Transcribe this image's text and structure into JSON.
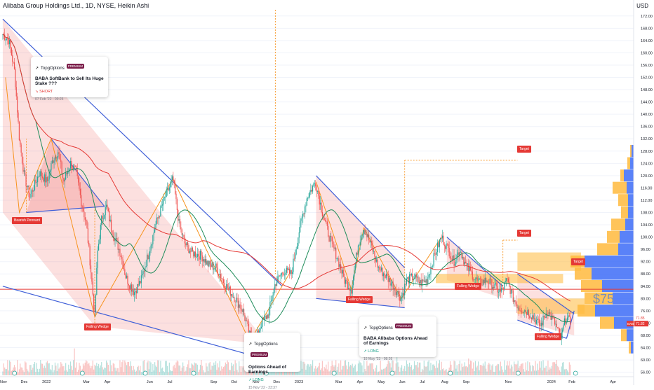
{
  "header": {
    "title": "Alibaba Group Holdings Ltd., 1D, NYSE, Heikin Ashi",
    "currency": "USD"
  },
  "chart_data": {
    "type": "candlestick",
    "symbol": "BABA",
    "price_label": "71.82",
    "last_price_label": "71.85",
    "big_price_text": "$75",
    "y_ticks": [
      "172.00",
      "168.00",
      "164.00",
      "160.00",
      "156.00",
      "152.00",
      "148.00",
      "144.00",
      "140.00",
      "136.00",
      "132.00",
      "128.00",
      "124.00",
      "120.00",
      "116.00",
      "112.00",
      "108.00",
      "104.00",
      "100.00",
      "96.00",
      "92.00",
      "88.00",
      "84.00",
      "80.00",
      "76.00",
      "72.00",
      "68.00",
      "64.00",
      "60.00",
      "56.00"
    ],
    "ylim": [
      55,
      174
    ],
    "x_ticks": [
      "Nov",
      "Dec",
      "2022",
      "Mar",
      "Apr",
      "Jun",
      "Jul",
      "Sep",
      "Oct",
      "Nov",
      "Dec",
      "2023",
      "Mar",
      "Apr",
      "May",
      "Jun",
      "Jul",
      "Aug",
      "Sep",
      "Nov",
      "2024",
      "Feb",
      "Apr"
    ],
    "horizontal_level": 83.0,
    "path_points": [
      {
        "d": "2021-11-01",
        "p": 166
      },
      {
        "d": "2021-11-10",
        "p": 164
      },
      {
        "d": "2021-11-18",
        "p": 154
      },
      {
        "d": "2021-11-25",
        "p": 132
      },
      {
        "d": "2021-12-02",
        "p": 120
      },
      {
        "d": "2021-12-10",
        "p": 113
      },
      {
        "d": "2021-12-17",
        "p": 117
      },
      {
        "d": "2021-12-24",
        "p": 121
      },
      {
        "d": "2022-01-04",
        "p": 118
      },
      {
        "d": "2022-01-12",
        "p": 125
      },
      {
        "d": "2022-01-20",
        "p": 128
      },
      {
        "d": "2022-01-28",
        "p": 118
      },
      {
        "d": "2022-02-07",
        "p": 124
      },
      {
        "d": "2022-02-15",
        "p": 121
      },
      {
        "d": "2022-02-23",
        "p": 111
      },
      {
        "d": "2022-03-02",
        "p": 104
      },
      {
        "d": "2022-03-08",
        "p": 90
      },
      {
        "d": "2022-03-14",
        "p": 74
      },
      {
        "d": "2022-03-18",
        "p": 95
      },
      {
        "d": "2022-03-24",
        "p": 106
      },
      {
        "d": "2022-03-31",
        "p": 110
      },
      {
        "d": "2022-04-08",
        "p": 102
      },
      {
        "d": "2022-04-20",
        "p": 95
      },
      {
        "d": "2022-04-28",
        "p": 87
      },
      {
        "d": "2022-05-10",
        "p": 82
      },
      {
        "d": "2022-05-20",
        "p": 86
      },
      {
        "d": "2022-05-31",
        "p": 95
      },
      {
        "d": "2022-06-10",
        "p": 104
      },
      {
        "d": "2022-06-22",
        "p": 112
      },
      {
        "d": "2022-07-05",
        "p": 119
      },
      {
        "d": "2022-07-14",
        "p": 104
      },
      {
        "d": "2022-07-22",
        "p": 98
      },
      {
        "d": "2022-08-01",
        "p": 95
      },
      {
        "d": "2022-08-15",
        "p": 94
      },
      {
        "d": "2022-08-25",
        "p": 91
      },
      {
        "d": "2022-09-06",
        "p": 90
      },
      {
        "d": "2022-09-20",
        "p": 84
      },
      {
        "d": "2022-10-03",
        "p": 80
      },
      {
        "d": "2022-10-14",
        "p": 76
      },
      {
        "d": "2022-10-24",
        "p": 68
      },
      {
        "d": "2022-11-01",
        "p": 66
      },
      {
        "d": "2022-11-10",
        "p": 72
      },
      {
        "d": "2022-11-20",
        "p": 75
      },
      {
        "d": "2022-11-30",
        "p": 85
      },
      {
        "d": "2022-12-12",
        "p": 89
      },
      {
        "d": "2022-12-23",
        "p": 88
      },
      {
        "d": "2023-01-05",
        "p": 104
      },
      {
        "d": "2023-01-15",
        "p": 113
      },
      {
        "d": "2023-01-27",
        "p": 118
      },
      {
        "d": "2023-02-06",
        "p": 108
      },
      {
        "d": "2023-02-16",
        "p": 100
      },
      {
        "d": "2023-02-28",
        "p": 93
      },
      {
        "d": "2023-03-10",
        "p": 86
      },
      {
        "d": "2023-03-20",
        "p": 83
      },
      {
        "d": "2023-03-30",
        "p": 98
      },
      {
        "d": "2023-04-07",
        "p": 103
      },
      {
        "d": "2023-04-18",
        "p": 97
      },
      {
        "d": "2023-04-28",
        "p": 90
      },
      {
        "d": "2023-05-10",
        "p": 87
      },
      {
        "d": "2023-05-20",
        "p": 84
      },
      {
        "d": "2023-05-31",
        "p": 80
      },
      {
        "d": "2023-06-08",
        "p": 86
      },
      {
        "d": "2023-06-18",
        "p": 87
      },
      {
        "d": "2023-06-28",
        "p": 85
      },
      {
        "d": "2023-07-07",
        "p": 86
      },
      {
        "d": "2023-07-18",
        "p": 94
      },
      {
        "d": "2023-07-28",
        "p": 100
      },
      {
        "d": "2023-08-07",
        "p": 96
      },
      {
        "d": "2023-08-15",
        "p": 92
      },
      {
        "d": "2023-08-24",
        "p": 96
      },
      {
        "d": "2023-09-01",
        "p": 91
      },
      {
        "d": "2023-09-10",
        "p": 88
      },
      {
        "d": "2023-09-20",
        "p": 85
      },
      {
        "d": "2023-10-02",
        "p": 86
      },
      {
        "d": "2023-10-12",
        "p": 84
      },
      {
        "d": "2023-10-22",
        "p": 82
      },
      {
        "d": "2023-10-31",
        "p": 86
      },
      {
        "d": "2023-11-09",
        "p": 80
      },
      {
        "d": "2023-11-17",
        "p": 77
      },
      {
        "d": "2023-11-28",
        "p": 76
      },
      {
        "d": "2023-12-08",
        "p": 74
      },
      {
        "d": "2023-12-18",
        "p": 71
      },
      {
        "d": "2023-12-28",
        "p": 76
      },
      {
        "d": "2024-01-08",
        "p": 72
      },
      {
        "d": "2024-01-17",
        "p": 67
      },
      {
        "d": "2024-01-24",
        "p": 74
      },
      {
        "d": "2024-01-31",
        "p": 72
      }
    ],
    "annotations": {
      "bearish_pennant": "Bearish Pennant",
      "falling_wedge": "Falling Wedge",
      "target": "Target"
    }
  },
  "ideas": [
    {
      "brand": "TopgOptions",
      "premium": "PREMIUM",
      "title": "BABA SoftBank to Sell Its Huge Stake ???",
      "direction": "↘ SHORT",
      "date": "07 Feb '22 - 09:25"
    },
    {
      "brand": "TopgOptions",
      "premium": "PREMIUM",
      "title": "Options Ahead of Earnings",
      "direction": "↗ LONG",
      "date": "15 Nov '22 - 23:37"
    },
    {
      "brand": "TopgOptions",
      "premium": "PREMIUM",
      "title": "BABA Alibaba Options Ahead of Earnings",
      "direction": "↗ LONG",
      "date": "16 May '23 - 08:26"
    }
  ],
  "colors": {
    "up": "#26a69a",
    "down": "#ef5350",
    "background": "#ffffff",
    "trendline": "#3f5fd8",
    "harmonic": "#f7931e",
    "ma_green": "#1e8c5a",
    "ma_red": "#e53935",
    "pattern_fill": "rgba(239,83,80,0.18)",
    "vp_up": "rgba(61,108,247,0.85)",
    "vp_down": "rgba(255,186,61,0.85)"
  }
}
